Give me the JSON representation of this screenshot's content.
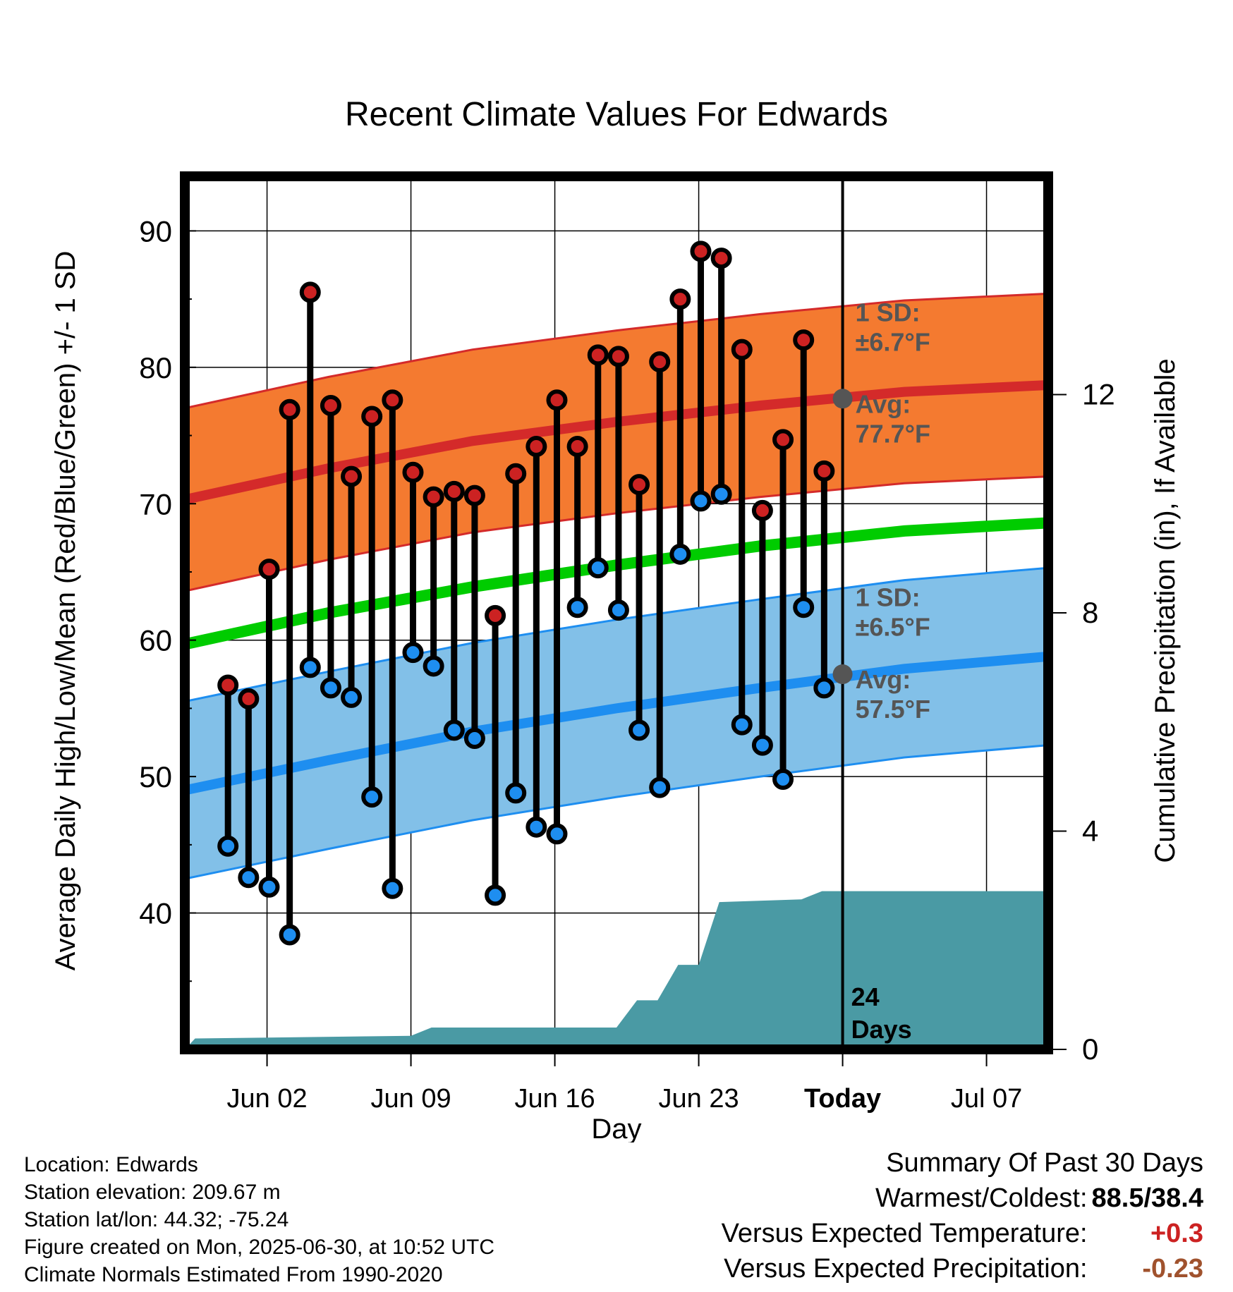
{
  "chart_data": {
    "type": "line",
    "title": "Recent Climate Values For Edwards",
    "xlabel": "Day",
    "ylabel": "Average Daily High/Low/Mean (Red/Blue/Green) +/- 1 SD",
    "y2label": "Cumulative Precipitation (in), If Available",
    "ylim": [
      30,
      94
    ],
    "y2lim": [
      0,
      16
    ],
    "yticks": [
      "40",
      "50",
      "60",
      "70",
      "80",
      "90"
    ],
    "y2ticks": [
      "0",
      "4",
      "8",
      "12"
    ],
    "xlim": [
      "2025-05-29",
      "2025-07-10"
    ],
    "xticks": [
      {
        "date": "2025-06-02",
        "label": "Jun 02"
      },
      {
        "date": "2025-06-09",
        "label": "Jun 09"
      },
      {
        "date": "2025-06-16",
        "label": "Jun 16"
      },
      {
        "date": "2025-06-23",
        "label": "Jun 23"
      },
      {
        "date": "2025-06-30",
        "label": "Today"
      },
      {
        "date": "2025-07-07",
        "label": "Jul 07"
      }
    ],
    "grid": true,
    "today_date": "2025-06-30",
    "today_text": [
      "24",
      "Days"
    ],
    "normals": {
      "dates": [
        "2025-05-29",
        "2025-06-05",
        "2025-06-12",
        "2025-06-19",
        "2025-06-26",
        "2025-07-03",
        "2025-07-10"
      ],
      "high_avg": [
        70.3,
        72.6,
        74.6,
        76.0,
        77.2,
        78.2,
        78.7
      ],
      "high_sd": 6.7,
      "low_avg": [
        49.0,
        51.2,
        53.3,
        55.0,
        56.5,
        57.9,
        58.8
      ],
      "low_sd": 6.5,
      "mean_avg": [
        59.7,
        62.0,
        63.9,
        65.5,
        66.9,
        68.0,
        68.6
      ]
    },
    "annotations": [
      {
        "text_lines": [
          "1 SD:",
          "±6.7°F"
        ]
      },
      {
        "text_lines": [
          "Avg:",
          "77.7°F"
        ],
        "value": 77.7
      },
      {
        "text_lines": [
          "1 SD:",
          "±6.5°F"
        ]
      },
      {
        "text_lines": [
          "Avg:",
          "57.5°F"
        ],
        "value": 57.5
      }
    ],
    "daily": {
      "dates": [
        "2025-06-01",
        "2025-06-02",
        "2025-06-03",
        "2025-06-04",
        "2025-06-05",
        "2025-06-06",
        "2025-06-07",
        "2025-06-08",
        "2025-06-09",
        "2025-06-10",
        "2025-06-11",
        "2025-06-12",
        "2025-06-13",
        "2025-06-14",
        "2025-06-15",
        "2025-06-16",
        "2025-06-17",
        "2025-06-18",
        "2025-06-19",
        "2025-06-20",
        "2025-06-21",
        "2025-06-22",
        "2025-06-23",
        "2025-06-24",
        "2025-06-25",
        "2025-06-26",
        "2025-06-27",
        "2025-06-28",
        "2025-06-29"
      ],
      "highs": [
        56.7,
        55.7,
        65.2,
        76.9,
        85.5,
        77.2,
        72.0,
        76.4,
        77.6,
        72.3,
        70.5,
        70.9,
        70.6,
        61.8,
        72.2,
        74.2,
        77.6,
        74.2,
        80.9,
        80.8,
        71.4,
        80.4,
        85.0,
        88.5,
        88.0,
        81.3,
        69.5,
        74.7,
        82.0
      ],
      "lows": [
        44.9,
        42.6,
        41.9,
        38.4,
        58.0,
        56.5,
        55.8,
        48.5,
        41.8,
        59.1,
        58.1,
        53.4,
        52.8,
        41.3,
        48.8,
        46.3,
        45.8,
        62.4,
        65.3,
        62.2,
        53.4,
        49.2,
        66.3,
        70.2,
        70.7,
        53.8,
        52.3,
        49.8,
        62.4
      ]
    },
    "extra_today_pair": {
      "high": 72.4,
      "low": 56.5
    },
    "precip": {
      "dates": [
        "2025-05-29",
        "2025-05-29.5",
        "2025-06-09",
        "2025-06-10",
        "2025-06-19",
        "2025-06-20",
        "2025-06-21",
        "2025-06-22",
        "2025-06-23",
        "2025-06-24",
        "2025-06-28",
        "2025-06-29",
        "2025-07-10"
      ],
      "cumulative": [
        0,
        0.2,
        0.25,
        0.4,
        0.4,
        0.9,
        0.9,
        1.55,
        1.55,
        2.7,
        2.75,
        2.9,
        2.9
      ]
    },
    "colors": {
      "high_band": "#f47a30",
      "high_line": "#d42a2a",
      "low_band": "#82c0e8",
      "low_line": "#1e8ef0",
      "mean_line": "#00cc00",
      "precip": "#4a9aa4",
      "high_marker": "#cc2222",
      "low_marker": "#1e8ef0",
      "annotation": "#555555"
    }
  },
  "footer": {
    "location": "Location: Edwards",
    "elevation": "Station elevation: 209.67 m",
    "latlon": "Station lat/lon: 44.32; -75.24",
    "created": "Figure created on Mon, 2025-06-30, at 10:52 UTC",
    "normals": "Climate Normals Estimated From 1990-2020"
  },
  "summary": {
    "header": "Summary Of Past 30 Days",
    "warm_cold_label": "Warmest/Coldest:",
    "warm_cold_value": "88.5/38.4",
    "temp_label": "Versus Expected Temperature:",
    "temp_value": "+0.3",
    "precip_label": "Versus Expected Precipitation:",
    "precip_value": "-0.23",
    "temp_color": "#cc2222",
    "precip_color": "#a0522d"
  }
}
